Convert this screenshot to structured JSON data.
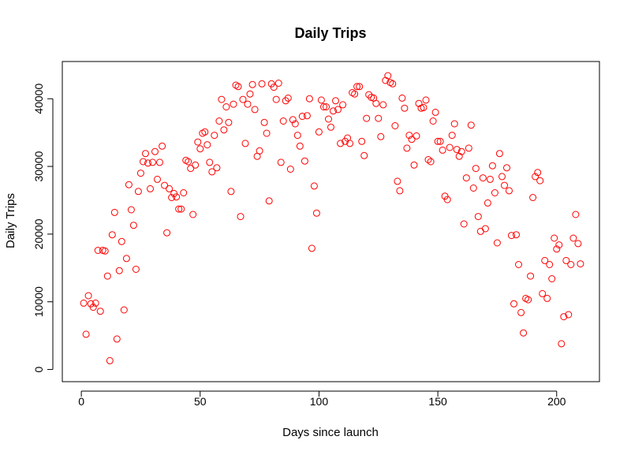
{
  "chart_data": {
    "type": "scatter",
    "title": "Daily Trips",
    "xlabel": "Days since launch",
    "ylabel": "Daily Trips",
    "xlim": [
      -8,
      218
    ],
    "ylim": [
      -1800,
      45500
    ],
    "x_ticks": [
      0,
      50,
      100,
      150,
      200
    ],
    "y_ticks": [
      0,
      10000,
      20000,
      30000,
      40000
    ],
    "grid": false,
    "marker_color": "#ff0000",
    "x": [
      1,
      2,
      3,
      4,
      5,
      6,
      7,
      8,
      9,
      10,
      11,
      12,
      13,
      14,
      15,
      16,
      17,
      18,
      19,
      20,
      21,
      22,
      23,
      24,
      25,
      26,
      27,
      28,
      29,
      30,
      31,
      32,
      33,
      34,
      35,
      36,
      37,
      38,
      39,
      40,
      41,
      42,
      43,
      44,
      45,
      46,
      47,
      48,
      49,
      50,
      51,
      52,
      53,
      54,
      55,
      56,
      57,
      58,
      59,
      60,
      61,
      62,
      63,
      64,
      65,
      66,
      67,
      68,
      69,
      70,
      71,
      72,
      73,
      74,
      75,
      76,
      77,
      78,
      79,
      80,
      81,
      82,
      83,
      84,
      85,
      86,
      87,
      88,
      89,
      90,
      91,
      92,
      93,
      94,
      95,
      96,
      97,
      98,
      99,
      100,
      101,
      102,
      103,
      104,
      105,
      106,
      107,
      108,
      109,
      110,
      111,
      112,
      113,
      114,
      115,
      116,
      117,
      118,
      119,
      120,
      121,
      122,
      123,
      124,
      125,
      126,
      127,
      128,
      129,
      130,
      131,
      132,
      133,
      134,
      135,
      136,
      137,
      138,
      139,
      140,
      141,
      142,
      143,
      144,
      145,
      146,
      147,
      148,
      149,
      150,
      151,
      152,
      153,
      154,
      155,
      156,
      157,
      158,
      159,
      160,
      161,
      162,
      163,
      164,
      165,
      166,
      167,
      168,
      169,
      170,
      171,
      172,
      173,
      174,
      175,
      176,
      177,
      178,
      179,
      180,
      181,
      182,
      183,
      184,
      185,
      186,
      187,
      188,
      189,
      190,
      191,
      192,
      193,
      194,
      195,
      196,
      197,
      198,
      199,
      200,
      201,
      202,
      203,
      204,
      205,
      206,
      207,
      208,
      209,
      210
    ],
    "y": [
      9800,
      5200,
      10900,
      9700,
      9200,
      9800,
      17600,
      8600,
      17600,
      17500,
      13800,
      1300,
      19900,
      23200,
      4500,
      14600,
      18900,
      8800,
      16400,
      27300,
      23600,
      21300,
      14800,
      26300,
      29000,
      30700,
      31900,
      30500,
      26700,
      30600,
      32200,
      28100,
      30600,
      33000,
      27200,
      20200,
      26700,
      25400,
      26000,
      25500,
      23700,
      23700,
      26100,
      30900,
      30700,
      29700,
      22900,
      30200,
      33600,
      32600,
      34900,
      35100,
      33200,
      30600,
      29200,
      34600,
      29800,
      36700,
      39900,
      35400,
      38800,
      36500,
      26300,
      39200,
      42000,
      41800,
      22600,
      39900,
      33400,
      39200,
      40700,
      42100,
      38400,
      31500,
      32300,
      42200,
      36500,
      34900,
      24900,
      42200,
      41700,
      39900,
      42300,
      30600,
      36700,
      39700,
      40100,
      29600,
      36900,
      36300,
      34600,
      33000,
      37400,
      30800,
      37500,
      40000,
      17900,
      27100,
      23100,
      35100,
      39800,
      38800,
      38800,
      37000,
      35800,
      38200,
      39700,
      38400,
      33400,
      39100,
      33700,
      34200,
      33400,
      40900,
      40700,
      41800,
      41800,
      33700,
      31600,
      37100,
      40600,
      40200,
      40100,
      39300,
      37100,
      34400,
      39100,
      42700,
      43400,
      42400,
      42200,
      36000,
      27800,
      26400,
      40100,
      38600,
      32700,
      34600,
      34000,
      30200,
      34500,
      39300,
      38600,
      38700,
      39800,
      31000,
      30700,
      36700,
      38000,
      33700,
      33700,
      32400,
      25600,
      25100,
      32800,
      34600,
      36300,
      32500,
      31500,
      32200,
      21500,
      28300,
      32700,
      36100,
      26800,
      29700,
      22600,
      20400,
      28300,
      20800,
      24600,
      28100,
      30100,
      26100,
      18700,
      31900,
      28500,
      27200,
      29800,
      26400,
      19800,
      9700,
      19900,
      15500,
      8400,
      5400,
      10500,
      10300,
      13800,
      25400,
      28500,
      29100,
      27900,
      11200,
      16100,
      10500,
      15500,
      13400,
      19400,
      17800,
      18400,
      3800,
      7800,
      16100,
      8100,
      15500,
      19400,
      22900,
      18600,
      15600
    ]
  }
}
